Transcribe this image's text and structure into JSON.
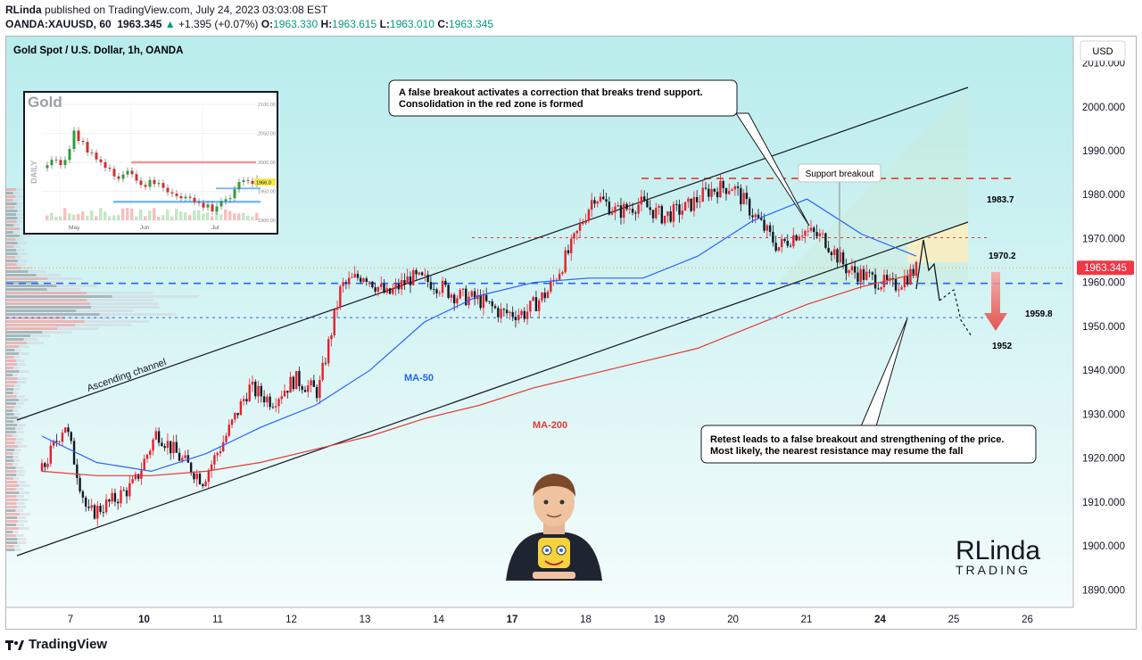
{
  "header": {
    "publisher": "RLinda",
    "published_text": "published on TradingView.com, July 24, 2023 03:03:08 EST",
    "symbol": "OANDA:XAUUSD, 60",
    "last": "1963.345",
    "change_arrow": "▲",
    "change": "+1.395 (+0.07%)",
    "o_label": "O:",
    "o": "1963.330",
    "h_label": "H:",
    "h": "1963.615",
    "l_label": "L:",
    "l": "1963.010",
    "c_label": "C:",
    "c": "1963.345"
  },
  "chart_title": "Gold Spot / U.S. Dollar, 1h, OANDA",
  "currency_button": "USD",
  "footer_brand": "TradingView",
  "colors": {
    "bull": "#e91e2c",
    "bear": "#131722",
    "ma50": "#2962ff",
    "ma200": "#e53935",
    "bg_top": "#b9ecec",
    "bg_bottom": "#f2fbfb",
    "up_text": "#089981",
    "price_badge": "#f23645"
  },
  "chart_data": {
    "type": "line",
    "ylim": [
      1886,
      2016
    ],
    "y_ticks": [
      "1890.000",
      "1900.000",
      "1910.000",
      "1920.000",
      "1930.000",
      "1940.000",
      "1950.000",
      "1960.000",
      "1970.000",
      "1980.000",
      "1990.000",
      "2000.000",
      "2010.000"
    ],
    "x_ticks": [
      "7",
      "10",
      "11",
      "12",
      "13",
      "14",
      "17",
      "18",
      "19",
      "20",
      "21",
      "24",
      "25",
      "26"
    ],
    "bold_ticks": [
      "10",
      "17",
      "24"
    ],
    "series": [
      {
        "name": "MA-50",
        "values": [
          1925,
          1919,
          1917,
          1921,
          1927,
          1932,
          1940,
          1951,
          1957,
          1960,
          1961,
          1961,
          1966,
          1974,
          1979,
          1971,
          1966
        ]
      },
      {
        "name": "MA-200",
        "values": [
          1917,
          1916,
          1916,
          1917,
          1919,
          1922,
          1925,
          1929,
          1932,
          1936,
          1939,
          1942,
          1945,
          1950,
          1955,
          1959,
          1962
        ]
      }
    ],
    "price_path": [
      1917,
      1928,
      1907,
      1910,
      1914,
      1926,
      1920,
      1915,
      1925,
      1936,
      1933,
      1938,
      1935,
      1959,
      1962,
      1957,
      1961,
      1960,
      1957,
      1956,
      1953,
      1953,
      1958,
      1968,
      1980,
      1976,
      1978,
      1975,
      1977,
      1981,
      1982,
      1975,
      1968,
      1972,
      1970,
      1963,
      1961,
      1959,
      1963
    ],
    "levels": [
      {
        "label": "1983.7",
        "value": 1983.7,
        "color": "#e53935",
        "style": "dashed"
      },
      {
        "label": "1970.2",
        "value": 1970.2,
        "color": "#e53935",
        "style": "dotted"
      },
      {
        "label": "1959.8",
        "value": 1959.8,
        "color": "#2962ff",
        "style": "dashed"
      },
      {
        "label": "1952",
        "value": 1952,
        "color": "#2962ff",
        "style": "dotted"
      }
    ],
    "current_price": "1963.345",
    "current_value": 1963.345,
    "annotations": {
      "channel_label": "Ascending channel",
      "ma50_label": "MA-50",
      "ma200_label": "MA-200",
      "support_breakout": "Support breakout",
      "callout_top_line1": "A false breakout activates a correction that breaks trend support.",
      "callout_top_line2": "Consolidation in the red zone is formed",
      "callout_bottom_line1": "Retest leads to a false breakout and strengthening of the price.",
      "callout_bottom_line2": "Most likely, the nearest resistance may resume the fall"
    }
  },
  "inset": {
    "title": "Gold",
    "side_label": "DAILY",
    "y_ticks": [
      "2100.00",
      "2050.00",
      "2000.00",
      "1950.00",
      "1900.00"
    ],
    "months": [
      "May",
      "Jun",
      "Jul"
    ],
    "price_badge": "1966.0",
    "closes": [
      1990,
      2010,
      1995,
      2050,
      2030,
      2020,
      2000,
      1985,
      1975,
      1990,
      1975,
      1960,
      1965,
      1960,
      1950,
      1945,
      1940,
      1930,
      1925,
      1920,
      1935,
      1940,
      1960,
      1970,
      1965
    ]
  },
  "logo": {
    "line1": "RLinda",
    "line2": "TRADING"
  }
}
